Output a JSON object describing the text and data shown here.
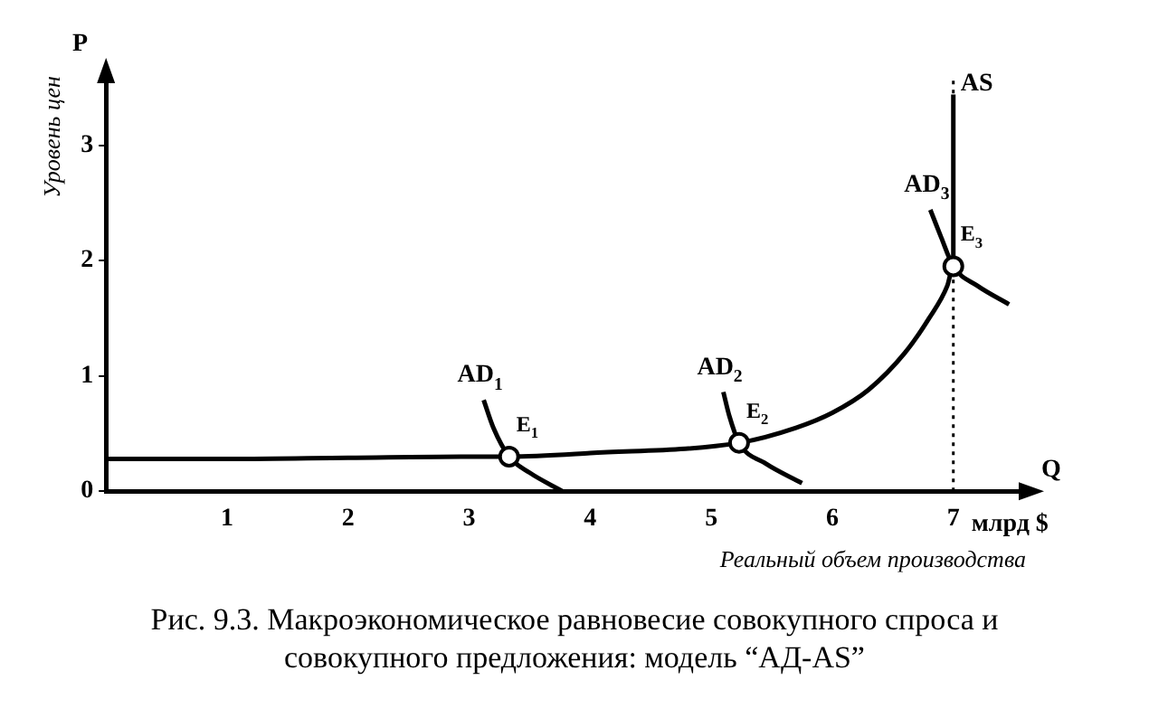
{
  "chart_data": {
    "type": "line",
    "title": "Рис. 9.3. Макроэкономическое равновесие совокупного спроса и совокупного предложения: модель “АД-AS”",
    "xlabel": "Реальный объем производства",
    "ylabel": "Уровень цен",
    "xlim": [
      0,
      7.6
    ],
    "xticks": [
      1,
      2,
      3,
      4,
      5,
      6,
      7
    ],
    "ylim": [
      0,
      3.6
    ],
    "yticks": [
      0,
      1,
      2,
      3
    ],
    "grid": false,
    "legend": false,
    "marker": "none",
    "line_style": "solid",
    "series": [
      {
        "name": "AS",
        "color": "#000000",
        "x": [
          0,
          1,
          2,
          3,
          3.33,
          4,
          5.23,
          5.7,
          6,
          6.3,
          6.6,
          6.8,
          6.95,
          7,
          7
        ],
        "values": [
          0.28,
          0.28,
          0.29,
          0.3,
          0.3,
          0.33,
          0.42,
          0.55,
          0.68,
          0.88,
          1.2,
          1.5,
          1.78,
          1.95,
          3.44
        ]
      },
      {
        "name": "AD$_{1}$",
        "color": "#000000",
        "x": [
          3.12,
          3.2,
          3.33,
          3.5,
          3.77
        ],
        "values": [
          0.79,
          0.55,
          0.3,
          0.16,
          0
        ]
      },
      {
        "name": "AD$_{2}$",
        "color": "#000000",
        "x": [
          5.1,
          5.15,
          5.23,
          5.45,
          5.75
        ],
        "values": [
          0.86,
          0.65,
          0.42,
          0.24,
          0.07
        ]
      },
      {
        "name": "AD$_{3}$",
        "color": "#000000",
        "x": [
          6.81,
          6.9,
          7,
          7.2,
          7.46
        ],
        "values": [
          2.44,
          2.2,
          1.95,
          1.78,
          1.62
        ]
      },
      {
        "type": "scatter",
        "marker": "circle",
        "color": "#000000",
        "x": [
          3.33,
          5.23,
          7
        ],
        "values": [
          0.3,
          0.42,
          1.95
        ]
      }
    ],
    "ref_lines": [
      {
        "axis": "x",
        "value": 7,
        "line_style": "dotted",
        "color": "#000000"
      }
    ],
    "annotations": [
      {
        "text": "E$_{1}$",
        "x": 3.33,
        "y": 0.3
      },
      {
        "text": "E$_{2}$",
        "x": 5.23,
        "y": 0.42
      },
      {
        "text": "E$_{3}$",
        "x": 7,
        "y": 1.95
      },
      "P",
      "Q",
      "млрд $"
    ]
  }
}
